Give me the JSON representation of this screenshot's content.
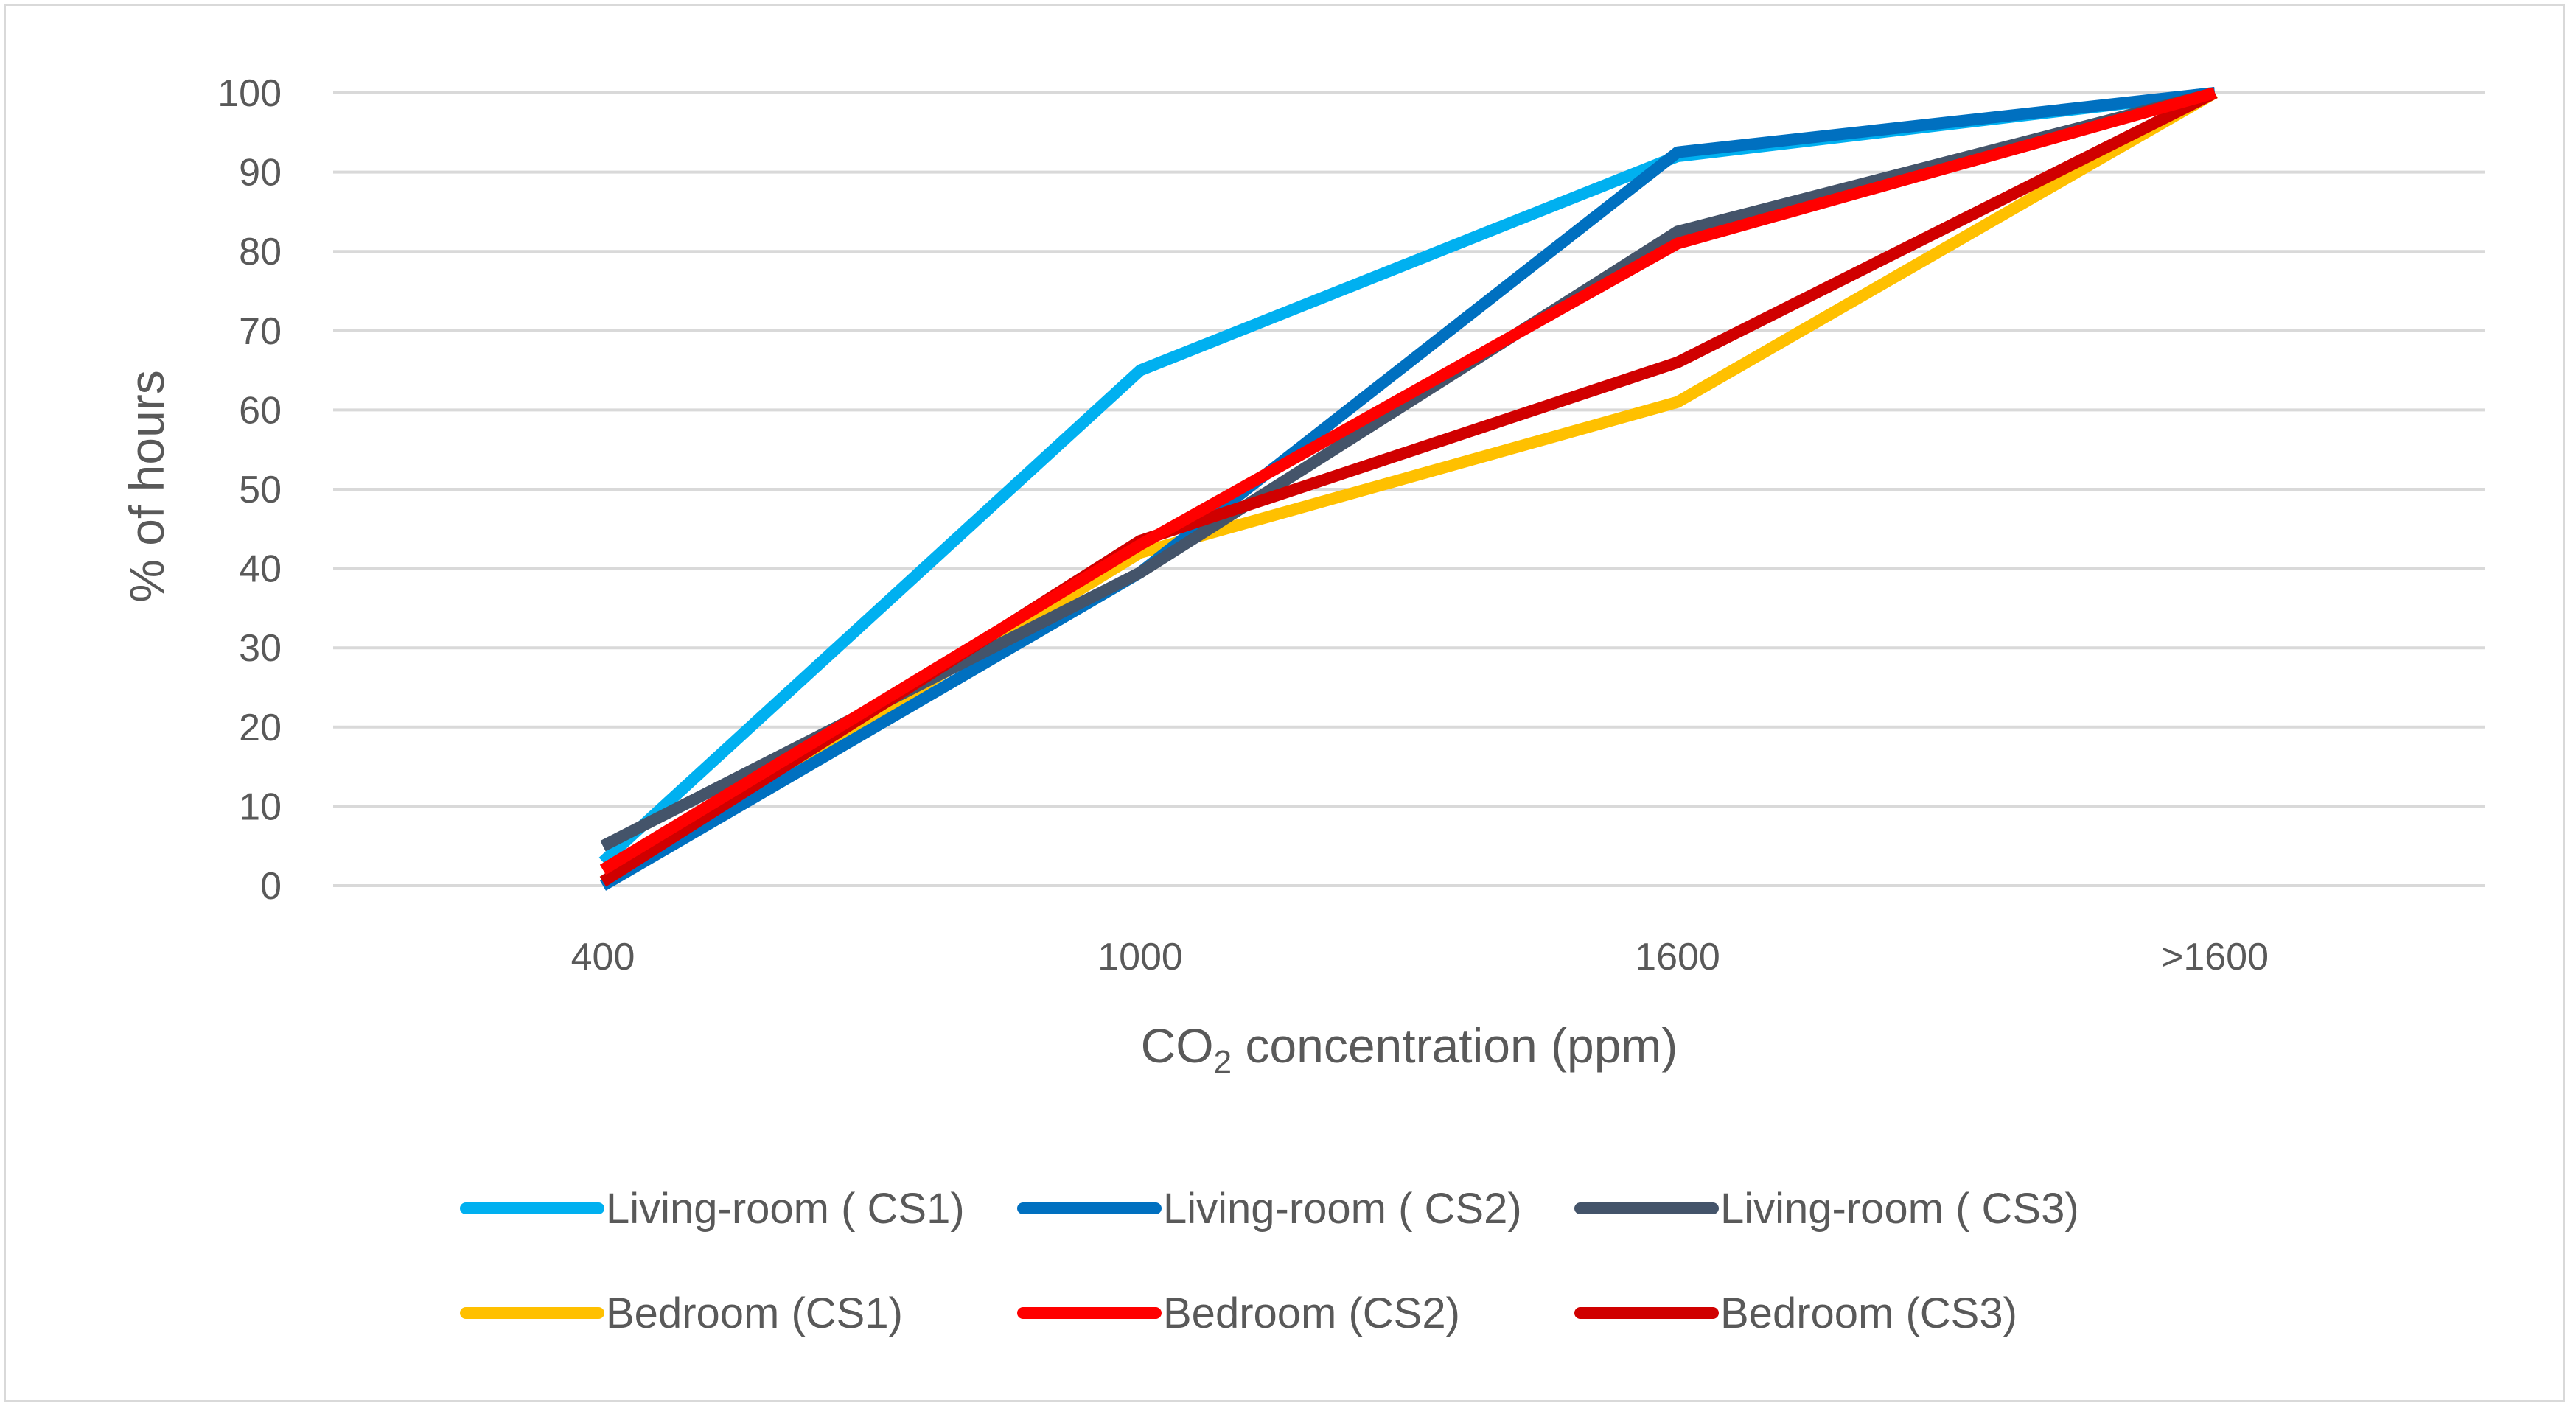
{
  "chart_data": {
    "type": "line",
    "title": "",
    "xlabel_main": "CO",
    "xlabel_sub": "2",
    "xlabel_rest": " concentration (ppm)",
    "ylabel": "% of hours",
    "categories": [
      "400",
      "1000",
      "1600",
      ">1600"
    ],
    "ylim": [
      0,
      100
    ],
    "yticks": [
      0,
      10,
      20,
      30,
      40,
      50,
      60,
      70,
      80,
      90,
      100
    ],
    "grid": true,
    "legend_position": "bottom",
    "series": [
      {
        "name": "Living-room ( CS1)",
        "color": "#00b0f0",
        "values": [
          3,
          65,
          92,
          100
        ]
      },
      {
        "name": "Bedroom (CS1)",
        "color": "#ffc000",
        "values": [
          0.5,
          42,
          61,
          100
        ]
      },
      {
        "name": "Living-room ( CS2)",
        "color": "#0070c0",
        "values": [
          0,
          39.5,
          92.5,
          100
        ]
      },
      {
        "name": "Living-room ( CS3)",
        "color": "#44546a",
        "values": [
          5,
          39.5,
          82.5,
          100
        ]
      },
      {
        "name": "Bedroom (CS3)",
        "color": "#d00000",
        "values": [
          0.5,
          43.5,
          66,
          100
        ]
      },
      {
        "name": "Bedroom (CS2)",
        "color": "#ff0000",
        "values": [
          2,
          43,
          81,
          100
        ]
      }
    ],
    "legend_order": [
      "Living-room ( CS1)",
      "Living-room ( CS2)",
      "Living-room ( CS3)",
      "Bedroom (CS1)",
      "Bedroom (CS2)",
      "Bedroom (CS3)"
    ]
  }
}
